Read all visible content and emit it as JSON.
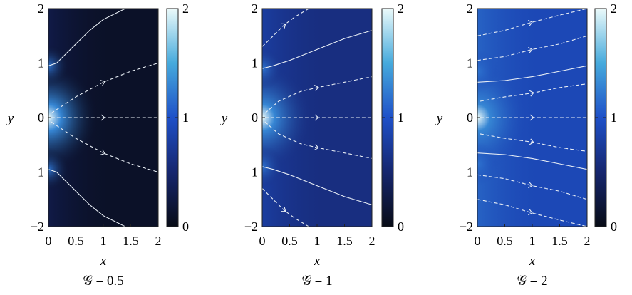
{
  "chart_data": [
    {
      "type": "heatmap",
      "title": "",
      "caption": "𝒢 = 0.5",
      "xlabel": "x",
      "ylabel": "y",
      "xlim": [
        0,
        2
      ],
      "ylim": [
        -2,
        2
      ],
      "xticks": [
        "0",
        "0.5",
        "1",
        "1.5",
        "2"
      ],
      "yticks": [
        "2",
        "1",
        "0",
        "−1",
        "−2"
      ],
      "colorbar": {
        "range": [
          0,
          2
        ],
        "ticks": [
          "2",
          "1",
          "0"
        ]
      },
      "background_level": 0.1,
      "hotspots": [
        {
          "x": 0,
          "y": 0,
          "peak": 2.0
        },
        {
          "x": 0,
          "y": 0.95,
          "peak": 1.0
        },
        {
          "x": 0,
          "y": -0.95,
          "peak": 1.0
        }
      ],
      "solid_lines": [
        {
          "x": [
            0,
            0.15,
            0.3,
            0.5,
            0.75,
            1.0,
            1.4
          ],
          "y": [
            0.95,
            1.0,
            1.15,
            1.35,
            1.6,
            1.8,
            2.0
          ]
        },
        {
          "x": [
            0,
            0.15,
            0.3,
            0.5,
            0.75,
            1.0,
            1.4
          ],
          "y": [
            -0.95,
            -1.0,
            -1.15,
            -1.35,
            -1.6,
            -1.8,
            -2.0
          ]
        }
      ],
      "dashed_lines": [
        {
          "x": [
            0.05,
            0.2,
            0.5,
            1.0,
            1.5,
            2.0
          ],
          "y": [
            0.08,
            0.18,
            0.38,
            0.65,
            0.85,
            1.0
          ]
        },
        {
          "x": [
            0.05,
            2.0
          ],
          "y": [
            0,
            0
          ]
        },
        {
          "x": [
            0.05,
            0.2,
            0.5,
            1.0,
            1.5,
            2.0
          ],
          "y": [
            -0.08,
            -0.18,
            -0.38,
            -0.65,
            -0.85,
            -1.0
          ]
        }
      ]
    },
    {
      "type": "heatmap",
      "title": "",
      "caption": "𝒢 = 1",
      "xlabel": "x",
      "ylabel": "y",
      "xlim": [
        0,
        2
      ],
      "ylim": [
        -2,
        2
      ],
      "xticks": [
        "0",
        "0.5",
        "1",
        "1.5",
        "2"
      ],
      "yticks": [
        "2",
        "1",
        "0",
        "−1",
        "−2"
      ],
      "colorbar": {
        "range": [
          0,
          2
        ],
        "ticks": [
          "2",
          "1",
          "0"
        ]
      },
      "background_level": 0.6,
      "hotspots": [
        {
          "x": 0,
          "y": 0,
          "peak": 2.0
        },
        {
          "x": 0,
          "y": 0.9,
          "peak": 1.1
        },
        {
          "x": 0,
          "y": -0.9,
          "peak": 1.1
        }
      ],
      "solid_lines": [
        {
          "x": [
            0,
            0.2,
            0.5,
            1.0,
            1.5,
            2.0
          ],
          "y": [
            0.9,
            0.95,
            1.05,
            1.25,
            1.45,
            1.6
          ]
        },
        {
          "x": [
            0,
            0.2,
            0.5,
            1.0,
            1.5,
            2.0
          ],
          "y": [
            -0.9,
            -0.95,
            -1.05,
            -1.25,
            -1.45,
            -1.6
          ]
        }
      ],
      "dashed_lines": [
        {
          "x": [
            0,
            0.2,
            0.4,
            0.6,
            0.85
          ],
          "y": [
            1.3,
            1.5,
            1.7,
            1.85,
            2.0
          ]
        },
        {
          "x": [
            0.05,
            0.3,
            0.7,
            1.0,
            1.5,
            2.0
          ],
          "y": [
            0.08,
            0.3,
            0.48,
            0.55,
            0.65,
            0.75
          ]
        },
        {
          "x": [
            0.05,
            2.0
          ],
          "y": [
            0,
            0
          ]
        },
        {
          "x": [
            0.05,
            0.3,
            0.7,
            1.0,
            1.5,
            2.0
          ],
          "y": [
            -0.08,
            -0.3,
            -0.48,
            -0.55,
            -0.65,
            -0.75
          ]
        },
        {
          "x": [
            0,
            0.2,
            0.4,
            0.6,
            0.85
          ],
          "y": [
            -1.3,
            -1.5,
            -1.7,
            -1.85,
            -2.0
          ]
        }
      ]
    },
    {
      "type": "heatmap",
      "title": "",
      "caption": "𝒢 = 2",
      "xlabel": "x",
      "ylabel": "y",
      "xlim": [
        0,
        2
      ],
      "ylim": [
        -2,
        2
      ],
      "xticks": [
        "0",
        "0.5",
        "1",
        "1.5",
        "2"
      ],
      "yticks": [
        "2",
        "1",
        "0",
        "−1",
        "−2"
      ],
      "colorbar": {
        "range": [
          0,
          2
        ],
        "ticks": [
          "2",
          "1",
          "0"
        ]
      },
      "background_level": 0.9,
      "hotspots": [
        {
          "x": 0,
          "y": 0,
          "peak": 2.0
        },
        {
          "x": 0,
          "y": 0.85,
          "peak": 1.2
        },
        {
          "x": 0,
          "y": -0.85,
          "peak": 1.2
        }
      ],
      "solid_lines": [
        {
          "x": [
            0,
            0.5,
            1.0,
            1.5,
            2.0
          ],
          "y": [
            0.65,
            0.68,
            0.75,
            0.85,
            0.95
          ]
        },
        {
          "x": [
            0,
            0.5,
            1.0,
            1.5,
            2.0
          ],
          "y": [
            -0.65,
            -0.68,
            -0.75,
            -0.85,
            -0.95
          ]
        }
      ],
      "dashed_lines": [
        {
          "x": [
            0,
            0.5,
            1.0,
            1.5,
            2.0
          ],
          "y": [
            1.5,
            1.6,
            1.75,
            1.88,
            2.0
          ]
        },
        {
          "x": [
            0,
            0.5,
            1.0,
            1.5,
            2.0
          ],
          "y": [
            1.05,
            1.12,
            1.25,
            1.35,
            1.5
          ]
        },
        {
          "x": [
            0.05,
            0.5,
            1.0,
            1.5,
            2.0
          ],
          "y": [
            0.3,
            0.38,
            0.45,
            0.55,
            0.62
          ]
        },
        {
          "x": [
            0.05,
            2.0
          ],
          "y": [
            0,
            0
          ]
        },
        {
          "x": [
            0.05,
            0.5,
            1.0,
            1.5,
            2.0
          ],
          "y": [
            -0.3,
            -0.38,
            -0.45,
            -0.55,
            -0.62
          ]
        },
        {
          "x": [
            0,
            0.5,
            1.0,
            1.5,
            2.0
          ],
          "y": [
            -1.05,
            -1.12,
            -1.25,
            -1.35,
            -1.5
          ]
        },
        {
          "x": [
            0,
            0.5,
            1.0,
            1.5,
            2.0
          ],
          "y": [
            -1.5,
            -1.6,
            -1.75,
            -1.88,
            -2.0
          ]
        }
      ]
    }
  ]
}
